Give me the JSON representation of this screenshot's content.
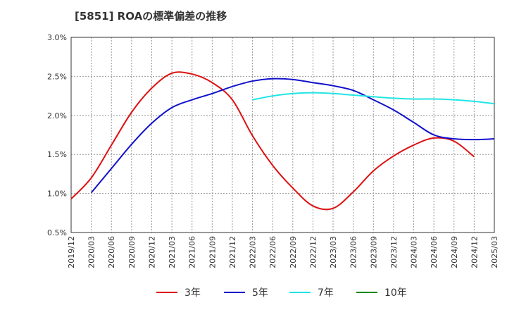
{
  "chart_data": {
    "type": "line",
    "title": "[5851]  ROAの標準偏差の推移",
    "xlabel": "",
    "ylabel": "",
    "ylim": [
      0.5,
      3.0
    ],
    "yticks": [
      "0.5%",
      "1.0%",
      "1.5%",
      "2.0%",
      "2.5%",
      "3.0%"
    ],
    "ytick_values": [
      0.5,
      1.0,
      1.5,
      2.0,
      2.5,
      3.0
    ],
    "x_categories": [
      "2019/12",
      "2020/03",
      "2020/06",
      "2020/09",
      "2020/12",
      "2021/03",
      "2021/06",
      "2021/09",
      "2021/12",
      "2022/03",
      "2022/06",
      "2022/09",
      "2022/12",
      "2023/03",
      "2023/06",
      "2023/09",
      "2023/12",
      "2024/03",
      "2024/06",
      "2024/09",
      "2024/12",
      "2025/03"
    ],
    "grid": true,
    "legend_position": "bottom",
    "series": [
      {
        "name": "3年",
        "color": "#dd1111",
        "start_index": 0,
        "values": [
          0.93,
          1.2,
          1.62,
          2.04,
          2.35,
          2.54,
          2.53,
          2.42,
          2.2,
          1.74,
          1.36,
          1.07,
          0.84,
          0.81,
          1.02,
          1.29,
          1.48,
          1.62,
          1.71,
          1.67,
          1.47
        ]
      },
      {
        "name": "5年",
        "color": "#1111cc",
        "start_index": 1,
        "values": [
          1.01,
          1.32,
          1.63,
          1.9,
          2.1,
          2.2,
          2.28,
          2.37,
          2.44,
          2.47,
          2.46,
          2.42,
          2.38,
          2.32,
          2.2,
          2.07,
          1.91,
          1.75,
          1.7,
          1.69,
          1.7
        ]
      },
      {
        "name": "7年",
        "color": "#22e5e5",
        "start_index": 9,
        "values": [
          2.2,
          2.25,
          2.28,
          2.29,
          2.28,
          2.26,
          2.24,
          2.22,
          2.21,
          2.21,
          2.2,
          2.18,
          2.15
        ]
      },
      {
        "name": "10年",
        "color": "#118811",
        "start_index": 0,
        "values": []
      }
    ]
  }
}
